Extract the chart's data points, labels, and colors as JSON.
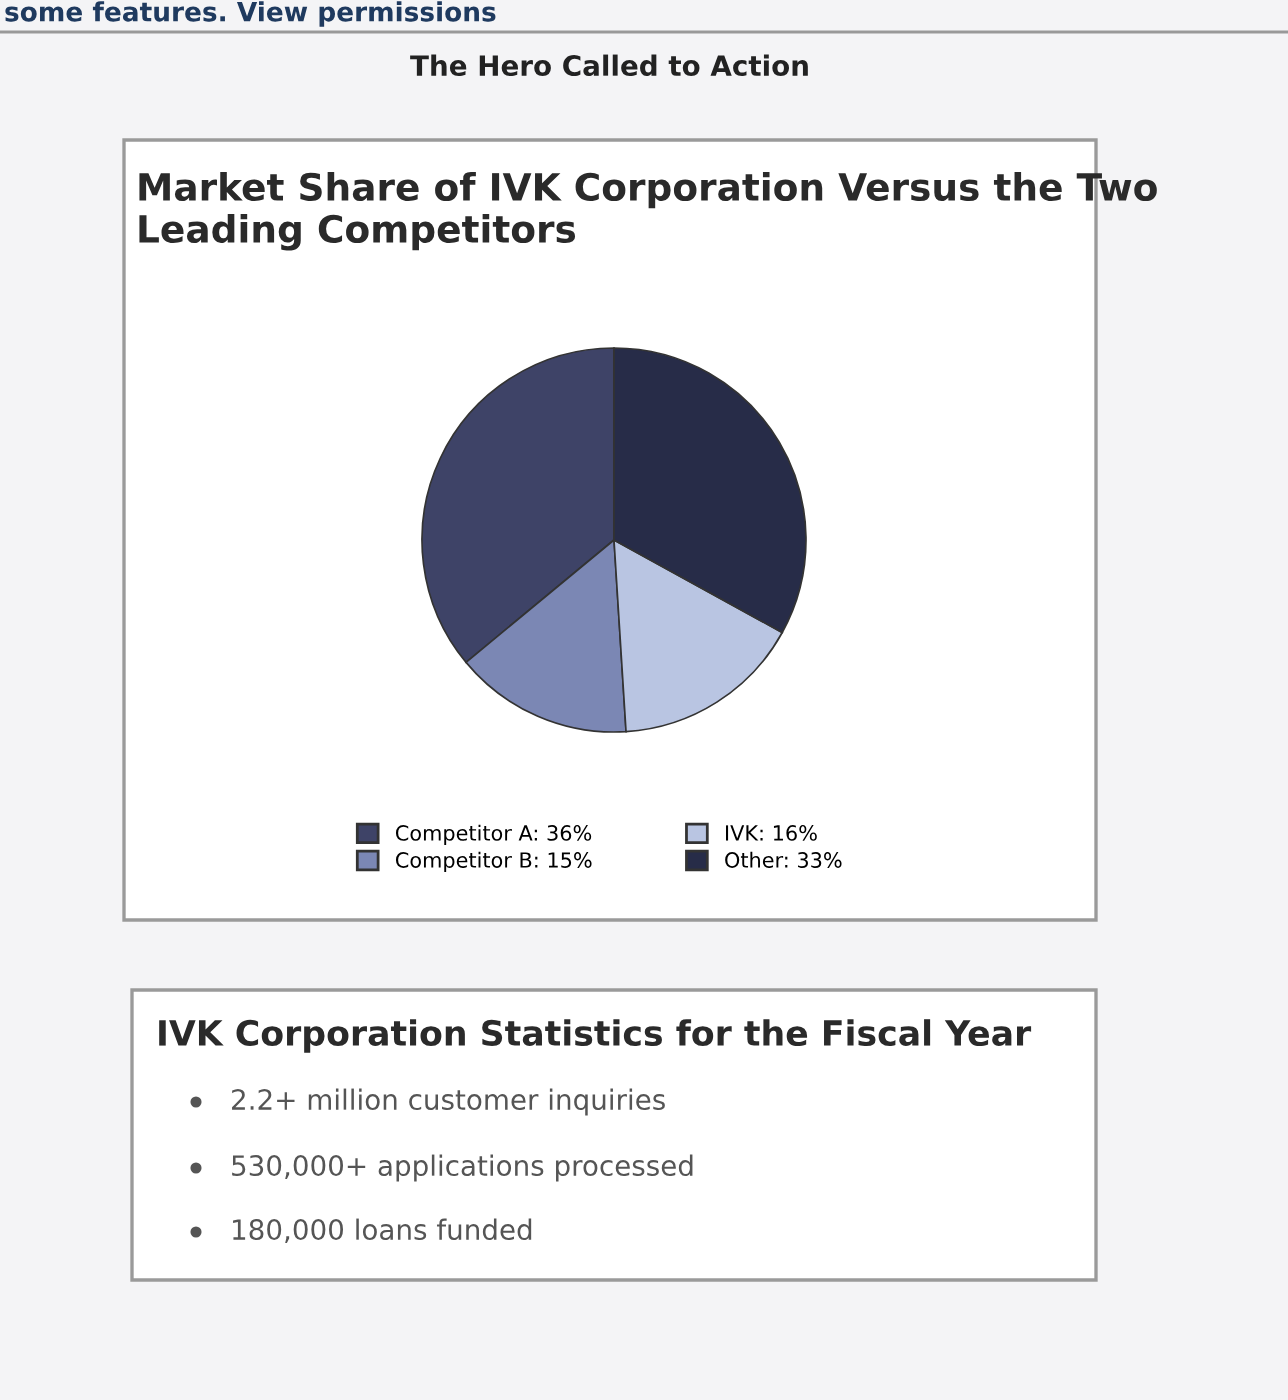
{
  "chart_data": {
    "type": "pie",
    "title": "Market Share of IVK Corporation Versus the Two Leading Competitors",
    "categories": [
      "Competitor A",
      "Competitor B",
      "IVK",
      "Other"
    ],
    "values": [
      36,
      15,
      16,
      33
    ],
    "value_labels": [
      "36%",
      "15%",
      "16%",
      "33%"
    ],
    "colors": [
      "#3e4367",
      "#7b87b4",
      "#b9c5e2",
      "#272c48"
    ],
    "legend": "bottom",
    "annotations": [
      "some features. View permissions",
      "The Hero Called to Action",
      "IVK Corporation Statistics for the Fiscal Year",
      "2.2+ million customer inquiries",
      "530,000+ applications processed",
      "180,000 loans funded"
    ]
  }
}
